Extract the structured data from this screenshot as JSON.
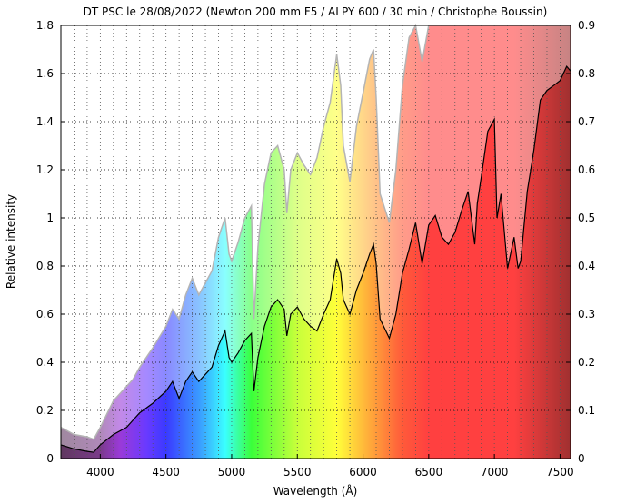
{
  "chart_data": {
    "type": "area",
    "title": "DT PSC le 28/08/2022 (Newton 200 mm F5 / ALPY 600 / 30 min / Christophe Boussin)",
    "xlabel": "Wavelength (Å)",
    "ylabel": "Relative intensity",
    "xlim": [
      3700,
      7580
    ],
    "ylim": [
      0,
      1.8
    ],
    "y2lim": [
      0,
      0.9
    ],
    "xticks": [
      4000,
      4500,
      5000,
      5500,
      6000,
      6500,
      7000,
      7500
    ],
    "yticks": [
      0,
      0.2,
      0.4,
      0.6,
      0.8,
      1,
      1.2,
      1.4,
      1.6,
      1.8
    ],
    "y2ticks": [
      0,
      0.1,
      0.2,
      0.3,
      0.4,
      0.5,
      0.6,
      0.7,
      0.8,
      0.9
    ],
    "grid": true,
    "fill": "visible-spectrum colors under curves",
    "series": [
      {
        "color": "#000000",
        "x": [
          3700,
          3800,
          3900,
          3950,
          4000,
          4100,
          4200,
          4250,
          4300,
          4400,
          4500,
          4550,
          4600,
          4650,
          4700,
          4750,
          4800,
          4850,
          4900,
          4950,
          4980,
          5000,
          5050,
          5100,
          5150,
          5170,
          5200,
          5250,
          5300,
          5350,
          5400,
          5420,
          5450,
          5500,
          5550,
          5600,
          5650,
          5700,
          5750,
          5800,
          5830,
          5850,
          5900,
          5950,
          6000,
          6050,
          6080,
          6100,
          6130,
          6200,
          6250,
          6300,
          6350,
          6400,
          6450,
          6500,
          6550,
          6600,
          6650,
          6700,
          6750,
          6800,
          6850,
          6870,
          6900,
          6950,
          7000,
          7020,
          7050,
          7100,
          7150,
          7180,
          7200,
          7250,
          7300,
          7350,
          7400,
          7450,
          7500,
          7550,
          7580
        ],
        "y": [
          0.057,
          0.04,
          0.03,
          0.026,
          0.057,
          0.1,
          0.13,
          0.16,
          0.19,
          0.23,
          0.28,
          0.32,
          0.25,
          0.32,
          0.36,
          0.32,
          0.35,
          0.38,
          0.47,
          0.53,
          0.42,
          0.4,
          0.44,
          0.49,
          0.52,
          0.28,
          0.42,
          0.55,
          0.63,
          0.66,
          0.62,
          0.51,
          0.6,
          0.63,
          0.58,
          0.55,
          0.53,
          0.6,
          0.66,
          0.83,
          0.77,
          0.66,
          0.6,
          0.7,
          0.77,
          0.85,
          0.89,
          0.81,
          0.58,
          0.5,
          0.6,
          0.77,
          0.87,
          0.98,
          0.81,
          0.97,
          1.01,
          0.92,
          0.89,
          0.94,
          1.03,
          1.11,
          0.89,
          1.06,
          1.17,
          1.36,
          1.41,
          1.0,
          1.1,
          0.79,
          0.92,
          0.79,
          0.82,
          1.11,
          1.28,
          1.49,
          1.53,
          1.55,
          1.57,
          1.63,
          1.61
        ]
      },
      {
        "color": "#b4b4b4",
        "x": [
          3700,
          3800,
          3900,
          3950,
          4000,
          4100,
          4200,
          4250,
          4300,
          4400,
          4500,
          4550,
          4600,
          4650,
          4700,
          4750,
          4800,
          4850,
          4900,
          4950,
          4980,
          5000,
          5050,
          5100,
          5150,
          5170,
          5200,
          5250,
          5300,
          5350,
          5400,
          5420,
          5450,
          5500,
          5550,
          5600,
          5650,
          5700,
          5750,
          5800,
          5830,
          5850,
          5900,
          5950,
          6000,
          6050,
          6080,
          6100,
          6130,
          6200,
          6250,
          6300,
          6350,
          6400,
          6450,
          6500,
          6550,
          6600,
          6650,
          6700,
          6750,
          6800,
          6850,
          6870,
          6900,
          6950,
          7000,
          7020,
          7050,
          7100,
          7150,
          7180,
          7200,
          7250,
          7300,
          7350,
          7400,
          7450,
          7500,
          7550,
          7580
        ],
        "y": [
          0.13,
          0.1,
          0.09,
          0.08,
          0.13,
          0.24,
          0.3,
          0.33,
          0.38,
          0.46,
          0.55,
          0.62,
          0.58,
          0.68,
          0.75,
          0.68,
          0.73,
          0.78,
          0.92,
          1.0,
          0.85,
          0.82,
          0.9,
          1.0,
          1.05,
          0.58,
          0.88,
          1.14,
          1.27,
          1.3,
          1.2,
          1.02,
          1.2,
          1.27,
          1.22,
          1.18,
          1.25,
          1.38,
          1.48,
          1.68,
          1.55,
          1.3,
          1.15,
          1.38,
          1.52,
          1.66,
          1.7,
          1.5,
          1.1,
          0.98,
          1.2,
          1.55,
          1.75,
          1.8,
          1.65,
          1.8,
          1.8,
          1.8,
          1.8,
          1.8,
          1.8,
          1.8,
          1.8,
          1.8,
          1.8,
          1.8,
          1.8,
          1.8,
          1.8,
          1.8,
          1.8,
          1.8,
          1.8,
          1.8,
          1.8,
          1.8,
          1.8,
          1.8,
          1.8,
          1.8,
          1.8
        ]
      }
    ]
  }
}
